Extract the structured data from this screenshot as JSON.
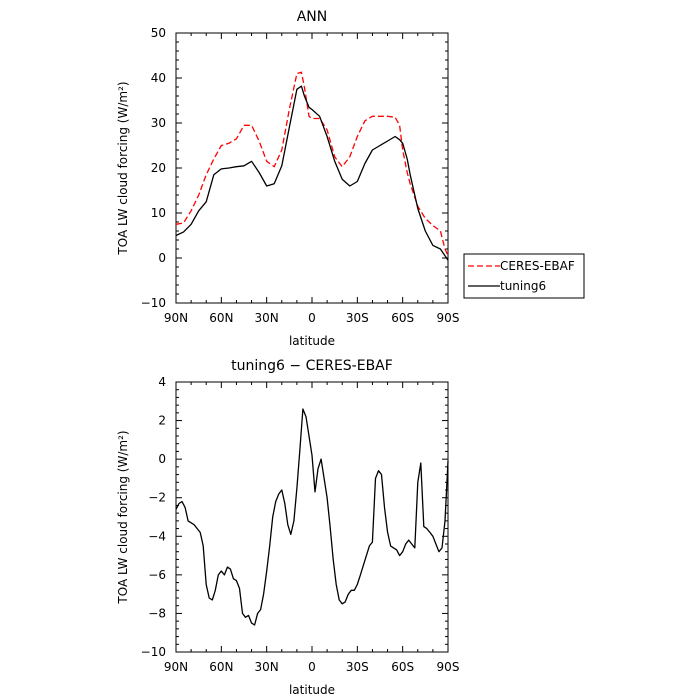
{
  "chart_data": [
    {
      "type": "line",
      "title": "ANN",
      "xlabel": "latitude",
      "ylabel": "TOA LW cloud forcing (W/m²)",
      "x_ticks": [
        "90N",
        "60N",
        "30N",
        "0",
        "30S",
        "60S",
        "90S"
      ],
      "xlim": [
        -90,
        90
      ],
      "ylim": [
        -10,
        50
      ],
      "y_ticks": [
        -10,
        0,
        10,
        20,
        30,
        40,
        50
      ],
      "grid": false,
      "legend": "outside-right",
      "series": [
        {
          "name": "CERES-EBAF",
          "color": "#ff0000",
          "dash": "dashed",
          "x": [
            -90,
            -85,
            -80,
            -75,
            -70,
            -65,
            -60,
            -55,
            -50,
            -45,
            -40,
            -35,
            -30,
            -25,
            -20,
            -15,
            -10,
            -7,
            -5,
            -2,
            0,
            5,
            10,
            15,
            20,
            25,
            30,
            35,
            40,
            45,
            50,
            55,
            58,
            60,
            63,
            65,
            70,
            75,
            80,
            85,
            88,
            90
          ],
          "values": [
            7.5,
            7.8,
            10.5,
            14,
            18.5,
            22,
            25,
            25.5,
            26.5,
            29.5,
            29.5,
            26,
            21.5,
            20.3,
            24,
            33,
            41,
            41.3,
            38,
            31.5,
            31,
            31,
            28.5,
            22.5,
            20.3,
            22.5,
            27,
            30.5,
            31.5,
            31.5,
            31.5,
            31.3,
            29.5,
            24,
            19,
            16.5,
            11.5,
            8.8,
            7.2,
            6,
            2,
            0.5
          ]
        },
        {
          "name": "tuning6",
          "color": "#000000",
          "dash": "solid",
          "x": [
            -90,
            -85,
            -80,
            -75,
            -70,
            -65,
            -60,
            -55,
            -50,
            -45,
            -40,
            -35,
            -30,
            -25,
            -20,
            -15,
            -10,
            -7,
            -5,
            -2,
            0,
            5,
            10,
            15,
            20,
            25,
            30,
            35,
            40,
            45,
            50,
            55,
            58,
            60,
            63,
            65,
            70,
            75,
            80,
            85,
            88,
            90
          ],
          "values": [
            5,
            5.8,
            7.5,
            10.5,
            12.5,
            18.5,
            19.8,
            20,
            20.3,
            20.5,
            21.5,
            19,
            16,
            16.5,
            20.5,
            29,
            37.5,
            38.2,
            36,
            33.5,
            33,
            31.5,
            27,
            21.5,
            17.5,
            16,
            17,
            21,
            24,
            25,
            26,
            27,
            26.3,
            25.5,
            22,
            18.5,
            11,
            6,
            2.8,
            2,
            0.5,
            -0.5
          ]
        }
      ]
    },
    {
      "type": "line",
      "title": "tuning6 − CERES-EBAF",
      "xlabel": "latitude",
      "ylabel": "TOA LW cloud forcing (W/m²)",
      "x_ticks": [
        "90N",
        "60N",
        "30N",
        "0",
        "30S",
        "60S",
        "90S"
      ],
      "xlim": [
        -90,
        90
      ],
      "ylim": [
        -10,
        4
      ],
      "y_ticks": [
        -10,
        -8,
        -6,
        -4,
        -2,
        0,
        2,
        4
      ],
      "grid": false,
      "series": [
        {
          "color": "#000000",
          "dash": "solid",
          "x": [
            -90,
            -88,
            -86,
            -84,
            -82,
            -80,
            -78,
            -76,
            -74,
            -72,
            -70,
            -68,
            -66,
            -64,
            -62,
            -60,
            -58,
            -56,
            -54,
            -52,
            -50,
            -48,
            -46,
            -44,
            -42,
            -40,
            -38,
            -36,
            -34,
            -32,
            -30,
            -28,
            -26,
            -24,
            -22,
            -20,
            -18,
            -16,
            -14,
            -12,
            -10,
            -8,
            -6,
            -4,
            -2,
            0,
            2,
            4,
            6,
            8,
            10,
            12,
            14,
            16,
            18,
            20,
            22,
            24,
            26,
            28,
            30,
            32,
            34,
            36,
            38,
            40,
            42,
            44,
            46,
            48,
            50,
            52,
            54,
            56,
            58,
            60,
            62,
            64,
            66,
            68,
            70,
            72,
            74,
            76,
            78,
            80,
            82,
            84,
            86,
            88,
            90
          ],
          "values": [
            -2.6,
            -2.3,
            -2.2,
            -2.5,
            -3.2,
            -3.3,
            -3.4,
            -3.6,
            -3.8,
            -4.5,
            -6.5,
            -7.2,
            -7.3,
            -6.8,
            -6.0,
            -5.8,
            -6.0,
            -5.6,
            -5.7,
            -6.2,
            -6.3,
            -6.7,
            -8.0,
            -8.2,
            -8.1,
            -8.5,
            -8.6,
            -8.0,
            -7.8,
            -7.0,
            -5.8,
            -4.5,
            -3.0,
            -2.2,
            -1.8,
            -1.6,
            -2.3,
            -3.4,
            -3.9,
            -3.2,
            -1.5,
            0.5,
            2.6,
            2.2,
            1.2,
            0.2,
            -1.7,
            -0.5,
            0.0,
            -1.0,
            -2.0,
            -3.5,
            -5.2,
            -6.5,
            -7.3,
            -7.5,
            -7.4,
            -7.0,
            -6.8,
            -6.8,
            -6.5,
            -6.0,
            -5.5,
            -5.0,
            -4.5,
            -4.3,
            -1.0,
            -0.6,
            -0.8,
            -2.5,
            -3.8,
            -4.5,
            -4.6,
            -4.7,
            -5.0,
            -4.8,
            -4.4,
            -4.2,
            -4.4,
            -4.6,
            -1.2,
            -0.2,
            -3.5,
            -3.6,
            -3.8,
            -4.0,
            -4.4,
            -4.8,
            -4.6,
            -3.2,
            -0.1
          ]
        }
      ]
    }
  ]
}
